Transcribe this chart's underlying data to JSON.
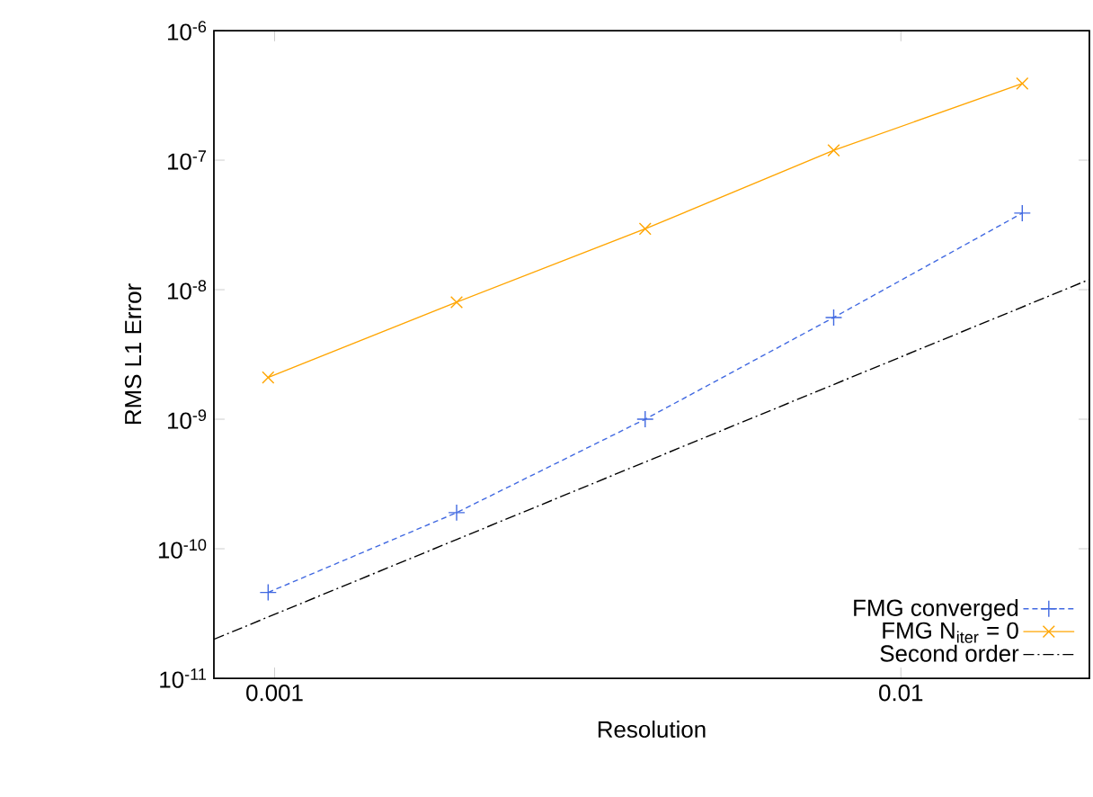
{
  "chart_data": {
    "type": "line",
    "xlabel": "Resolution",
    "ylabel": "RMS L1 Error",
    "log": "xy",
    "xlim": [
      0.0008,
      0.02
    ],
    "ylim": [
      1e-11,
      1e-06
    ],
    "xticks": [
      {
        "value": 0.001,
        "label": "0.001"
      },
      {
        "value": 0.01,
        "label": "0.01"
      }
    ],
    "yticks": [
      {
        "value": 1e-11,
        "label": "10$^{-11}$"
      },
      {
        "value": 1e-10,
        "label": "10$^{-10}$"
      },
      {
        "value": 1e-09,
        "label": "10$^{-9}$"
      },
      {
        "value": 1e-08,
        "label": "10$^{-8}$"
      },
      {
        "value": 1e-07,
        "label": "10$^{-7}$"
      },
      {
        "value": 1e-06,
        "label": "10$^{-6}$"
      }
    ],
    "legend": "bottom right",
    "grid": false,
    "series": [
      {
        "name": "FMG converged",
        "color": "#4169e1",
        "marker": "cross",
        "line_style": "dashed",
        "x": [
          0.0009765625,
          0.001953125,
          0.00390625,
          0.0078125,
          0.015625
        ],
        "values": [
          4.6e-11,
          1.9e-10,
          1e-09,
          6.1e-09,
          3.9e-08
        ]
      },
      {
        "name": "FMG N$_{iter}$ = 0",
        "color": "#ffa500",
        "marker": "x",
        "line_style": "solid",
        "x": [
          0.0009765625,
          0.001953125,
          0.00390625,
          0.0078125,
          0.015625
        ],
        "values": [
          2.1e-09,
          8e-09,
          2.95e-08,
          1.19e-07,
          3.9e-07
        ]
      },
      {
        "name": "Second order",
        "color": "#000000",
        "marker": "none",
        "line_style": "dashdot",
        "x": [
          0.0008,
          0.02
        ],
        "values": [
          2e-11,
          1.2e-08
        ]
      }
    ]
  }
}
